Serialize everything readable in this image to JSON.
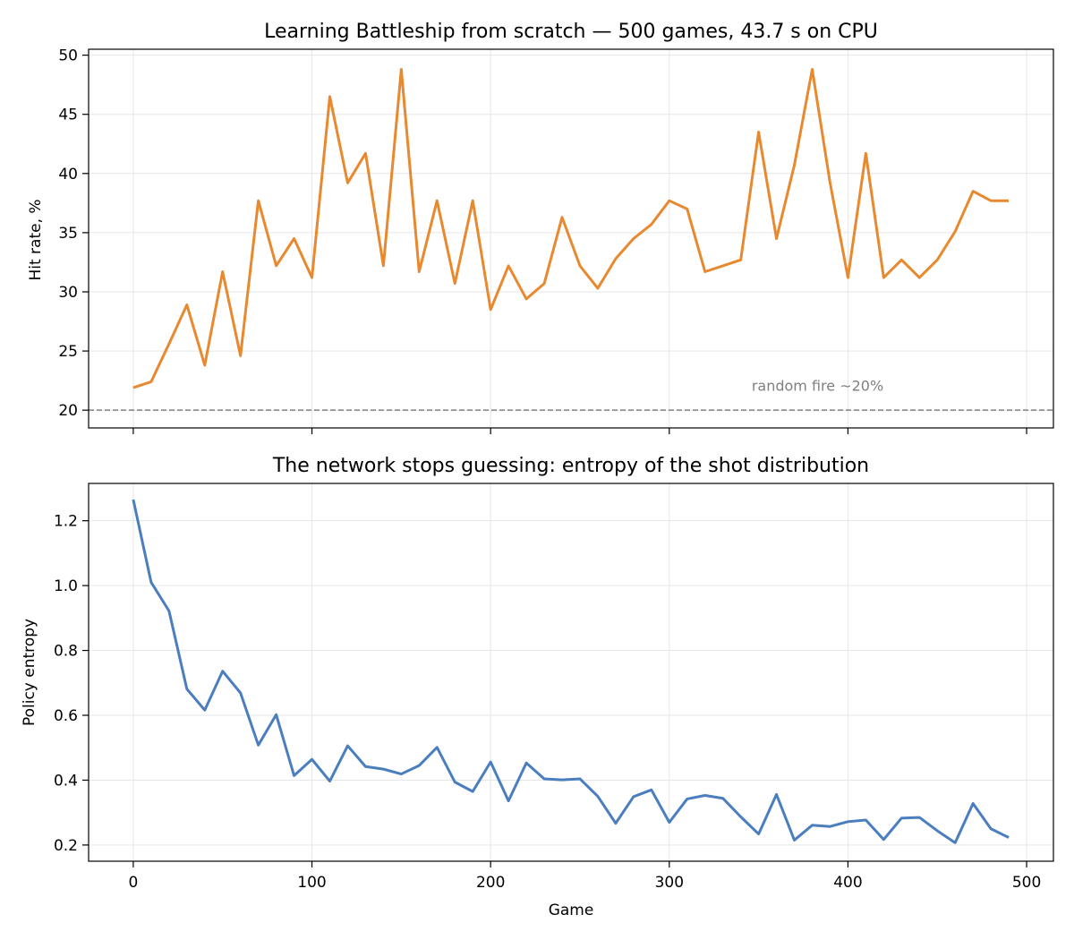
{
  "chart_data": [
    {
      "type": "line",
      "title": "Learning Battleship from scratch — 500 games, 43.7 s on CPU",
      "xlabel": "",
      "ylabel": "Hit rate, %",
      "xlim": [
        -25,
        515
      ],
      "ylim": [
        18.5,
        50.5
      ],
      "xticks": [
        0,
        100,
        200,
        300,
        400,
        500
      ],
      "show_xtick_labels": false,
      "yticks": [
        20,
        25,
        30,
        35,
        40,
        45,
        50
      ],
      "ytick_labels": [
        "20",
        "25",
        "30",
        "35",
        "40",
        "45",
        "50"
      ],
      "grid": true,
      "x": [
        0,
        10,
        20,
        30,
        40,
        50,
        60,
        70,
        80,
        90,
        100,
        110,
        120,
        130,
        140,
        150,
        160,
        170,
        180,
        190,
        200,
        210,
        220,
        230,
        240,
        250,
        260,
        270,
        280,
        290,
        300,
        310,
        320,
        330,
        340,
        350,
        360,
        370,
        380,
        390,
        400,
        410,
        420,
        430,
        440,
        450,
        460,
        470,
        480,
        490
      ],
      "series": [
        {
          "color": "#E8892F",
          "values": [
            21.9,
            22.4,
            25.6,
            28.9,
            23.8,
            31.7,
            24.6,
            37.7,
            32.2,
            34.5,
            31.2,
            46.5,
            39.2,
            41.7,
            32.2,
            48.8,
            31.7,
            37.7,
            30.7,
            37.7,
            28.5,
            32.2,
            29.4,
            30.7,
            36.3,
            32.2,
            30.3,
            32.8,
            34.5,
            35.7,
            37.7,
            37.0,
            31.7,
            32.2,
            32.7,
            43.5,
            34.5,
            40.7,
            48.8,
            39.2,
            31.2,
            41.7,
            31.2,
            32.7,
            31.2,
            32.7,
            35.1,
            38.5,
            37.7,
            37.7
          ]
        }
      ],
      "reference_line": {
        "y": 20,
        "color": "#808080",
        "style": "dashed"
      },
      "annotations": [
        {
          "text": "random fire ~20%",
          "x": 383,
          "y": 22.1
        }
      ]
    },
    {
      "type": "line",
      "title": "The network stops guessing: entropy of the shot distribution",
      "xlabel": "Game",
      "ylabel": "Policy entropy",
      "xlim": [
        -25,
        515
      ],
      "ylim": [
        0.15,
        1.315
      ],
      "xticks": [
        0,
        100,
        200,
        300,
        400,
        500
      ],
      "xtick_labels": [
        "0",
        "100",
        "200",
        "300",
        "400",
        "500"
      ],
      "yticks": [
        0.2,
        0.4,
        0.6,
        0.8,
        1.0,
        1.2
      ],
      "ytick_labels": [
        "0.2",
        "0.4",
        "0.6",
        "0.8",
        "1.0",
        "1.2"
      ],
      "grid": true,
      "x": [
        0,
        10,
        20,
        30,
        40,
        50,
        60,
        70,
        80,
        90,
        100,
        110,
        120,
        130,
        140,
        150,
        160,
        170,
        180,
        190,
        200,
        210,
        220,
        230,
        240,
        250,
        260,
        270,
        280,
        290,
        300,
        310,
        320,
        330,
        340,
        350,
        360,
        370,
        380,
        390,
        400,
        410,
        420,
        430,
        440,
        450,
        460,
        470,
        480,
        490
      ],
      "series": [
        {
          "color": "#4A7EBF",
          "values": [
            1.265,
            1.01,
            0.922,
            0.681,
            0.616,
            0.736,
            0.669,
            0.508,
            0.602,
            0.414,
            0.464,
            0.397,
            0.506,
            0.442,
            0.434,
            0.419,
            0.445,
            0.501,
            0.394,
            0.365,
            0.456,
            0.336,
            0.453,
            0.404,
            0.401,
            0.404,
            0.35,
            0.267,
            0.349,
            0.37,
            0.27,
            0.342,
            0.353,
            0.344,
            0.287,
            0.234,
            0.356,
            0.215,
            0.261,
            0.257,
            0.272,
            0.277,
            0.217,
            0.283,
            0.285,
            0.244,
            0.207,
            0.328,
            0.25,
            0.223
          ]
        }
      ]
    }
  ]
}
